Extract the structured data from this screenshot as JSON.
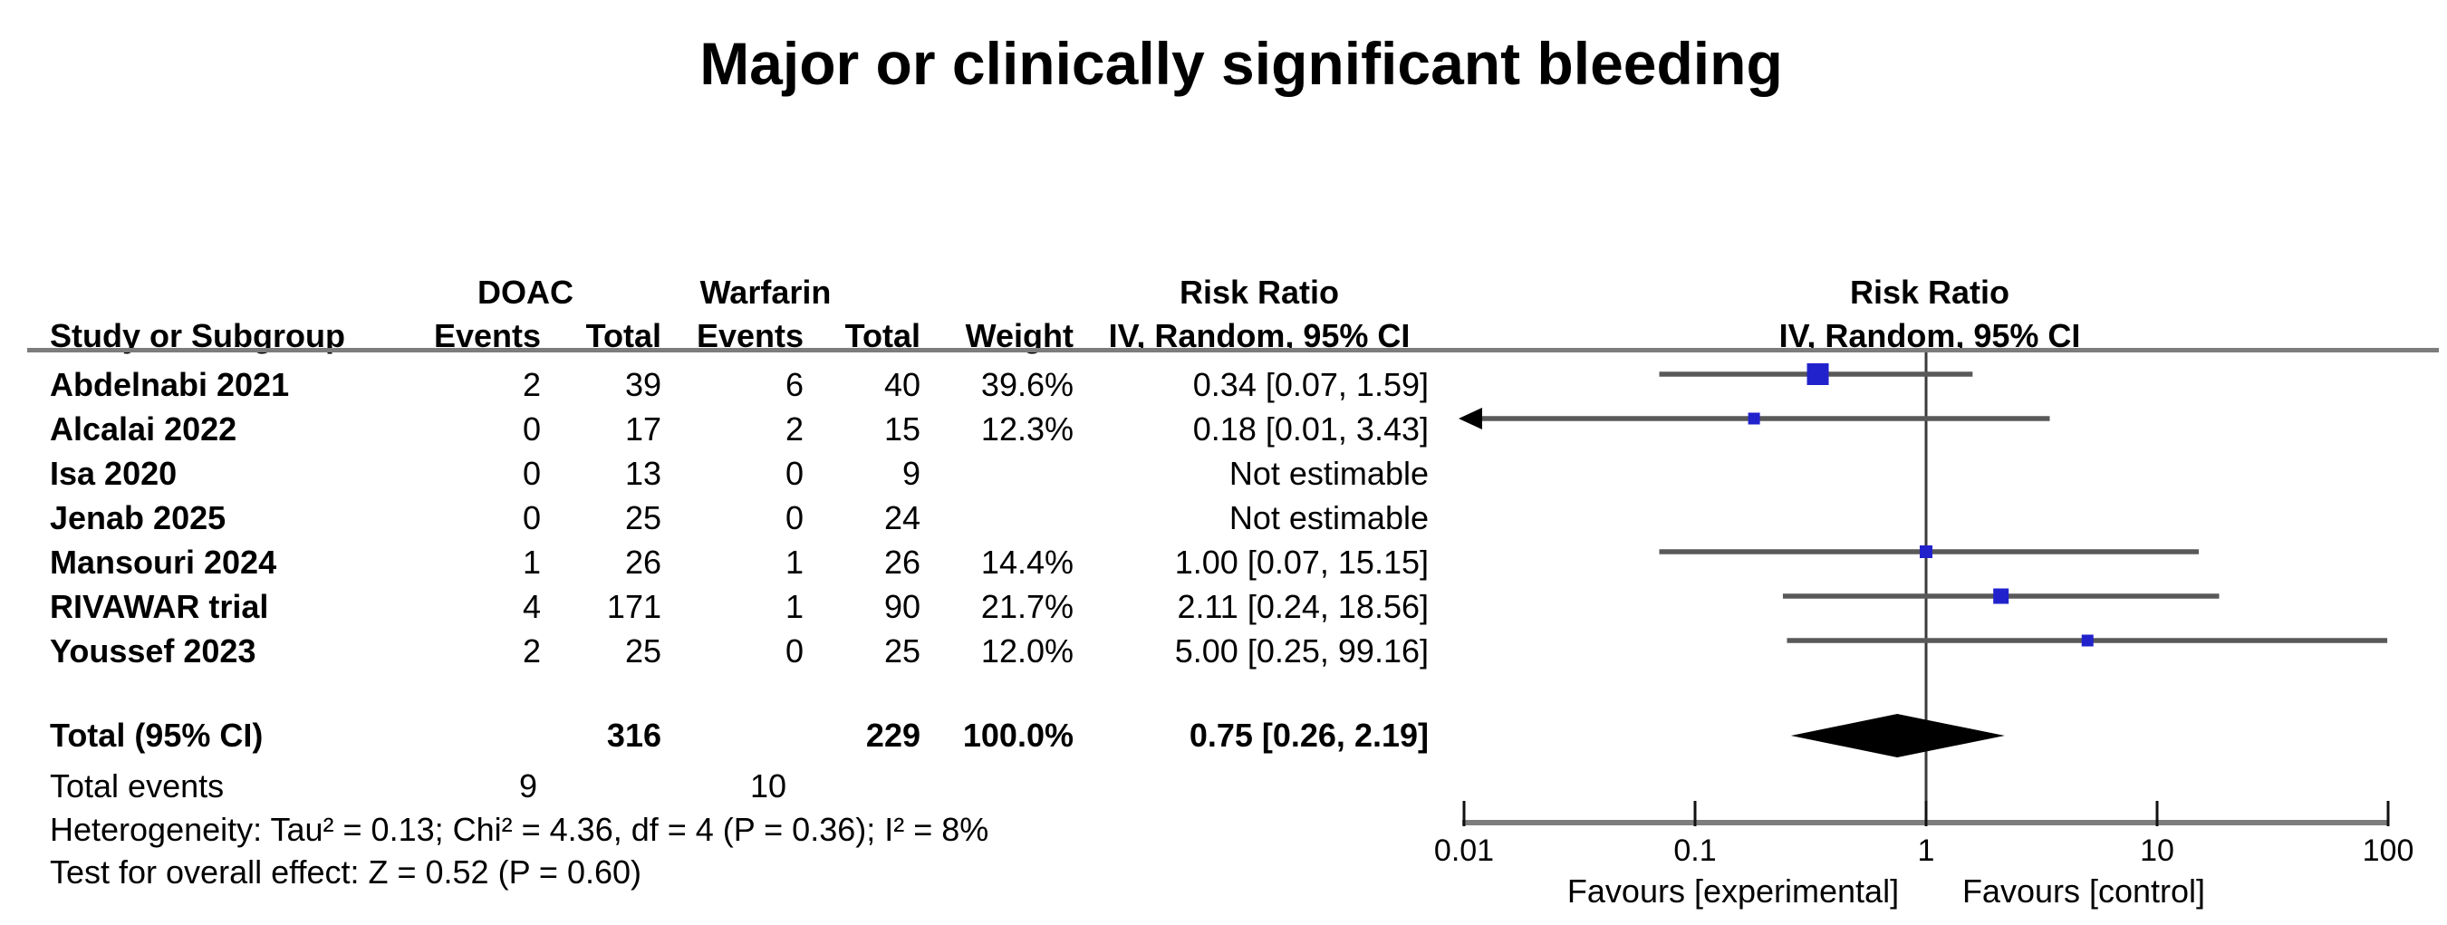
{
  "title": "Major or clinically significant bleeding",
  "colors": {
    "square_blue": "#2222cc",
    "ci_line_gray": "#595959",
    "axis_gray": "#7d7d7d",
    "reference_line": "#3a3a3a",
    "diamond_black": "#000000",
    "text": "#000000"
  },
  "table": {
    "group_headers": {
      "doac": "DOAC",
      "warfarin": "Warfarin",
      "risk_ratio_left": "Risk Ratio",
      "risk_ratio_right": "Risk Ratio"
    },
    "col_headers": {
      "study": "Study or Subgroup",
      "events1": "Events",
      "total1": "Total",
      "events2": "Events",
      "total2": "Total",
      "weight": "Weight",
      "iv_left": "IV, Random, 95% CI",
      "iv_right": "IV, Random, 95% CI"
    },
    "rows": [
      {
        "study": "Abdelnabi 2021",
        "e1": "2",
        "t1": "39",
        "e2": "6",
        "t2": "40",
        "weight": "39.6%",
        "rr_text": "0.34 [0.07, 1.59]"
      },
      {
        "study": "Alcalai 2022",
        "e1": "0",
        "t1": "17",
        "e2": "2",
        "t2": "15",
        "weight": "12.3%",
        "rr_text": "0.18 [0.01, 3.43]"
      },
      {
        "study": "Isa 2020",
        "e1": "0",
        "t1": "13",
        "e2": "0",
        "t2": "9",
        "weight": "",
        "rr_text": "Not estimable"
      },
      {
        "study": "Jenab 2025",
        "e1": "0",
        "t1": "25",
        "e2": "0",
        "t2": "24",
        "weight": "",
        "rr_text": "Not estimable"
      },
      {
        "study": "Mansouri 2024",
        "e1": "1",
        "t1": "26",
        "e2": "1",
        "t2": "26",
        "weight": "14.4%",
        "rr_text": "1.00 [0.07, 15.15]"
      },
      {
        "study": "RIVAWAR trial",
        "e1": "4",
        "t1": "171",
        "e2": "1",
        "t2": "90",
        "weight": "21.7%",
        "rr_text": "2.11 [0.24, 18.56]"
      },
      {
        "study": "Youssef 2023",
        "e1": "2",
        "t1": "25",
        "e2": "0",
        "t2": "25",
        "weight": "12.0%",
        "rr_text": "5.00 [0.25, 99.16]"
      }
    ],
    "total": {
      "label": "Total (95% CI)",
      "t1": "316",
      "t2": "229",
      "weight": "100.0%",
      "rr_text": "0.75 [0.26, 2.19]"
    },
    "total_events": {
      "label": "Total events",
      "e1": "9",
      "e2": "10"
    },
    "heterogeneity": "Heterogeneity: Tau² = 0.13; Chi² = 4.36, df = 4 (P = 0.36); I² = 8%",
    "overall_effect": "Test for overall effect: Z = 0.52 (P = 0.60)"
  },
  "axis": {
    "ticks": [
      "0.01",
      "0.1",
      "1",
      "10",
      "100"
    ],
    "tick_values": [
      0.01,
      0.1,
      1,
      10,
      100
    ],
    "favours_left": "Favours [experimental]",
    "favours_right": "Favours [control]"
  },
  "chart_data": {
    "type": "forest",
    "title": "Major or clinically significant bleeding",
    "effect_measure": "Risk Ratio",
    "model": "IV, Random, 95% CI",
    "comparison": {
      "experimental": "DOAC",
      "control": "Warfarin"
    },
    "x_scale": "log10",
    "xlim": [
      0.01,
      100
    ],
    "x_ticks": [
      0.01,
      0.1,
      1,
      10,
      100
    ],
    "studies": [
      {
        "name": "Abdelnabi 2021",
        "events_doac": 2,
        "total_doac": 39,
        "events_warfarin": 6,
        "total_warfarin": 40,
        "weight_pct": 39.6,
        "rr": 0.34,
        "ci_low": 0.07,
        "ci_high": 1.59,
        "not_estimable": false,
        "arrow_low": false
      },
      {
        "name": "Alcalai 2022",
        "events_doac": 0,
        "total_doac": 17,
        "events_warfarin": 2,
        "total_warfarin": 15,
        "weight_pct": 12.3,
        "rr": 0.18,
        "ci_low": 0.01,
        "ci_high": 3.43,
        "not_estimable": false,
        "arrow_low": true
      },
      {
        "name": "Isa 2020",
        "events_doac": 0,
        "total_doac": 13,
        "events_warfarin": 0,
        "total_warfarin": 9,
        "weight_pct": null,
        "rr": null,
        "ci_low": null,
        "ci_high": null,
        "not_estimable": true,
        "arrow_low": false
      },
      {
        "name": "Jenab 2025",
        "events_doac": 0,
        "total_doac": 25,
        "events_warfarin": 0,
        "total_warfarin": 24,
        "weight_pct": null,
        "rr": null,
        "ci_low": null,
        "ci_high": null,
        "not_estimable": true,
        "arrow_low": false
      },
      {
        "name": "Mansouri 2024",
        "events_doac": 1,
        "total_doac": 26,
        "events_warfarin": 1,
        "total_warfarin": 26,
        "weight_pct": 14.4,
        "rr": 1.0,
        "ci_low": 0.07,
        "ci_high": 15.15,
        "not_estimable": false,
        "arrow_low": false
      },
      {
        "name": "RIVAWAR trial",
        "events_doac": 4,
        "total_doac": 171,
        "events_warfarin": 1,
        "total_warfarin": 90,
        "weight_pct": 21.7,
        "rr": 2.11,
        "ci_low": 0.24,
        "ci_high": 18.56,
        "not_estimable": false,
        "arrow_low": false
      },
      {
        "name": "Youssef 2023",
        "events_doac": 2,
        "total_doac": 25,
        "events_warfarin": 0,
        "total_warfarin": 25,
        "weight_pct": 12.0,
        "rr": 5.0,
        "ci_low": 0.25,
        "ci_high": 99.16,
        "not_estimable": false,
        "arrow_low": false
      }
    ],
    "total": {
      "label": "Total (95% CI)",
      "total_doac": 316,
      "total_warfarin": 229,
      "weight_pct": 100.0,
      "rr": 0.75,
      "ci_low": 0.26,
      "ci_high": 2.19,
      "total_events_doac": 9,
      "total_events_warfarin": 10
    },
    "heterogeneity": {
      "tau2": 0.13,
      "chi2": 4.36,
      "df": 4,
      "p": 0.36,
      "i2_pct": 8
    },
    "overall_effect": {
      "z": 0.52,
      "p": 0.6
    }
  }
}
